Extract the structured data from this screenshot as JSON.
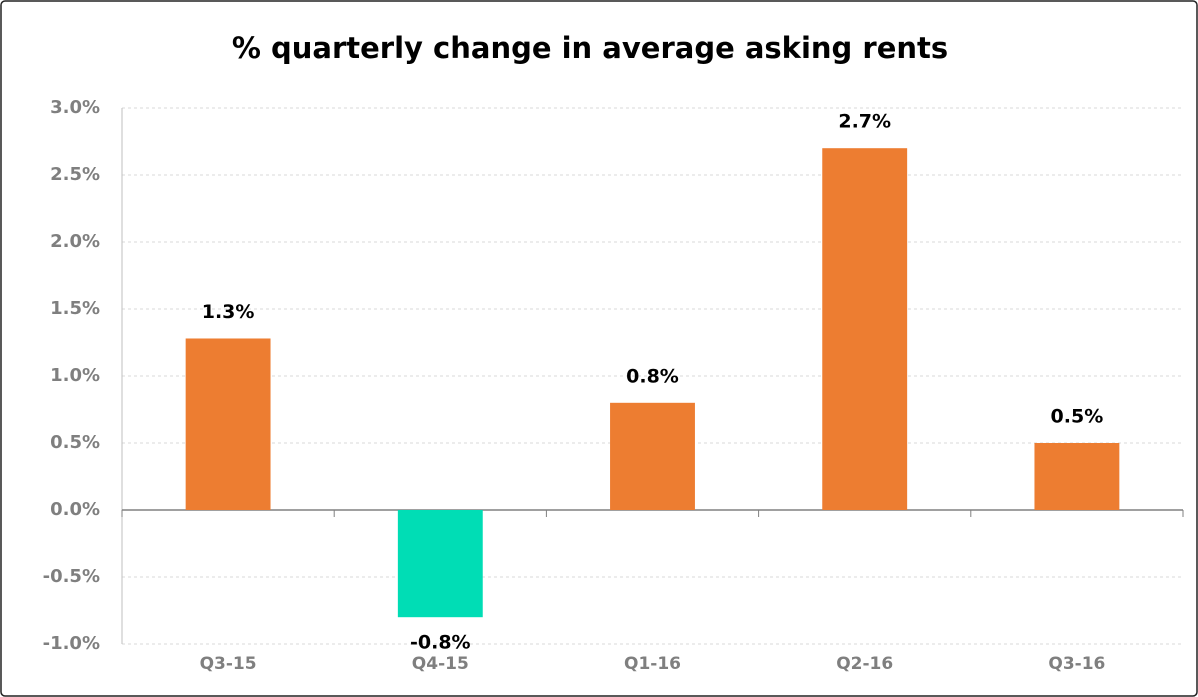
{
  "chart_data": {
    "type": "bar",
    "title": "% quarterly change in average asking rents",
    "categories": [
      "Q3-15",
      "Q4-15",
      "Q1-16",
      "Q2-16",
      "Q3-16"
    ],
    "values": [
      1.28,
      -0.8,
      0.8,
      2.7,
      0.5
    ],
    "value_labels": [
      "1.3%",
      "-0.8%",
      "0.8%",
      "2.7%",
      "0.5%"
    ],
    "colors": [
      "#ed7d31",
      "#00ddb5",
      "#ed7d31",
      "#ed7d31",
      "#ed7d31"
    ],
    "ylim": [
      -1.0,
      3.0
    ],
    "yticks": [
      {
        "value": -1.0,
        "label": "-1.0%"
      },
      {
        "value": -0.5,
        "label": "-0.5%"
      },
      {
        "value": 0,
        "label": "0.0%"
      },
      {
        "value": 0.5,
        "label": "0.5%"
      },
      {
        "value": 1.0,
        "label": "1.0%"
      },
      {
        "value": 1.5,
        "label": "1.5%"
      },
      {
        "value": 2.0,
        "label": "2.0%"
      },
      {
        "value": 2.5,
        "label": "2.5%"
      },
      {
        "value": 3.0,
        "label": "3.0%"
      }
    ],
    "grid": true
  }
}
